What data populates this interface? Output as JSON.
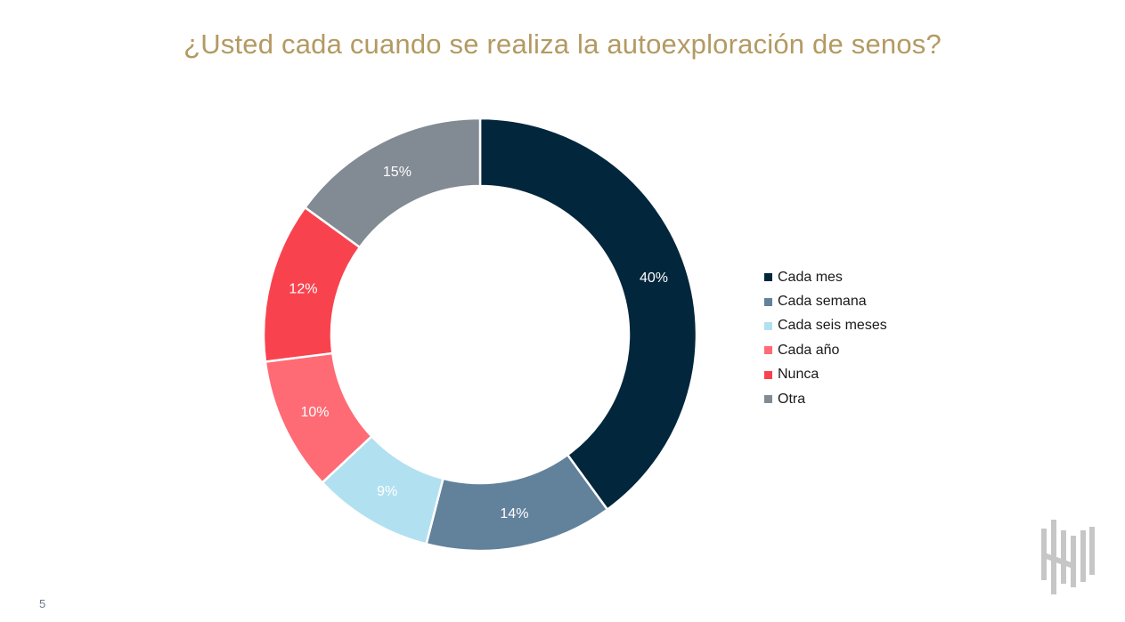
{
  "page": {
    "title": "¿Usted cada cuando se realiza la autoexploración de senos?",
    "page_number": "5"
  },
  "chart_data": {
    "type": "pie",
    "title": "¿Usted cada cuando se realiza la autoexploración de senos?",
    "style": "donut",
    "legend_position": "right",
    "categories": [
      "Cada mes",
      "Cada semana",
      "Cada seis meses",
      "Cada año",
      "Nunca",
      "Otra"
    ],
    "values": [
      40,
      14,
      9,
      10,
      12,
      15
    ],
    "labels": [
      "40%",
      "14%",
      "9%",
      "10%",
      "12%",
      "15%"
    ],
    "colors": [
      "#02263c",
      "#62819b",
      "#b1e1f0",
      "#fe6b74",
      "#f8434f",
      "#828a93"
    ],
    "label_colors": [
      "#ffffff",
      "#ffffff",
      "#ffffff",
      "#ffffff",
      "#ffffff",
      "#ffffff"
    ]
  },
  "logo": {
    "icon": "brand-logo-icon",
    "color": "#c6c6c6"
  }
}
